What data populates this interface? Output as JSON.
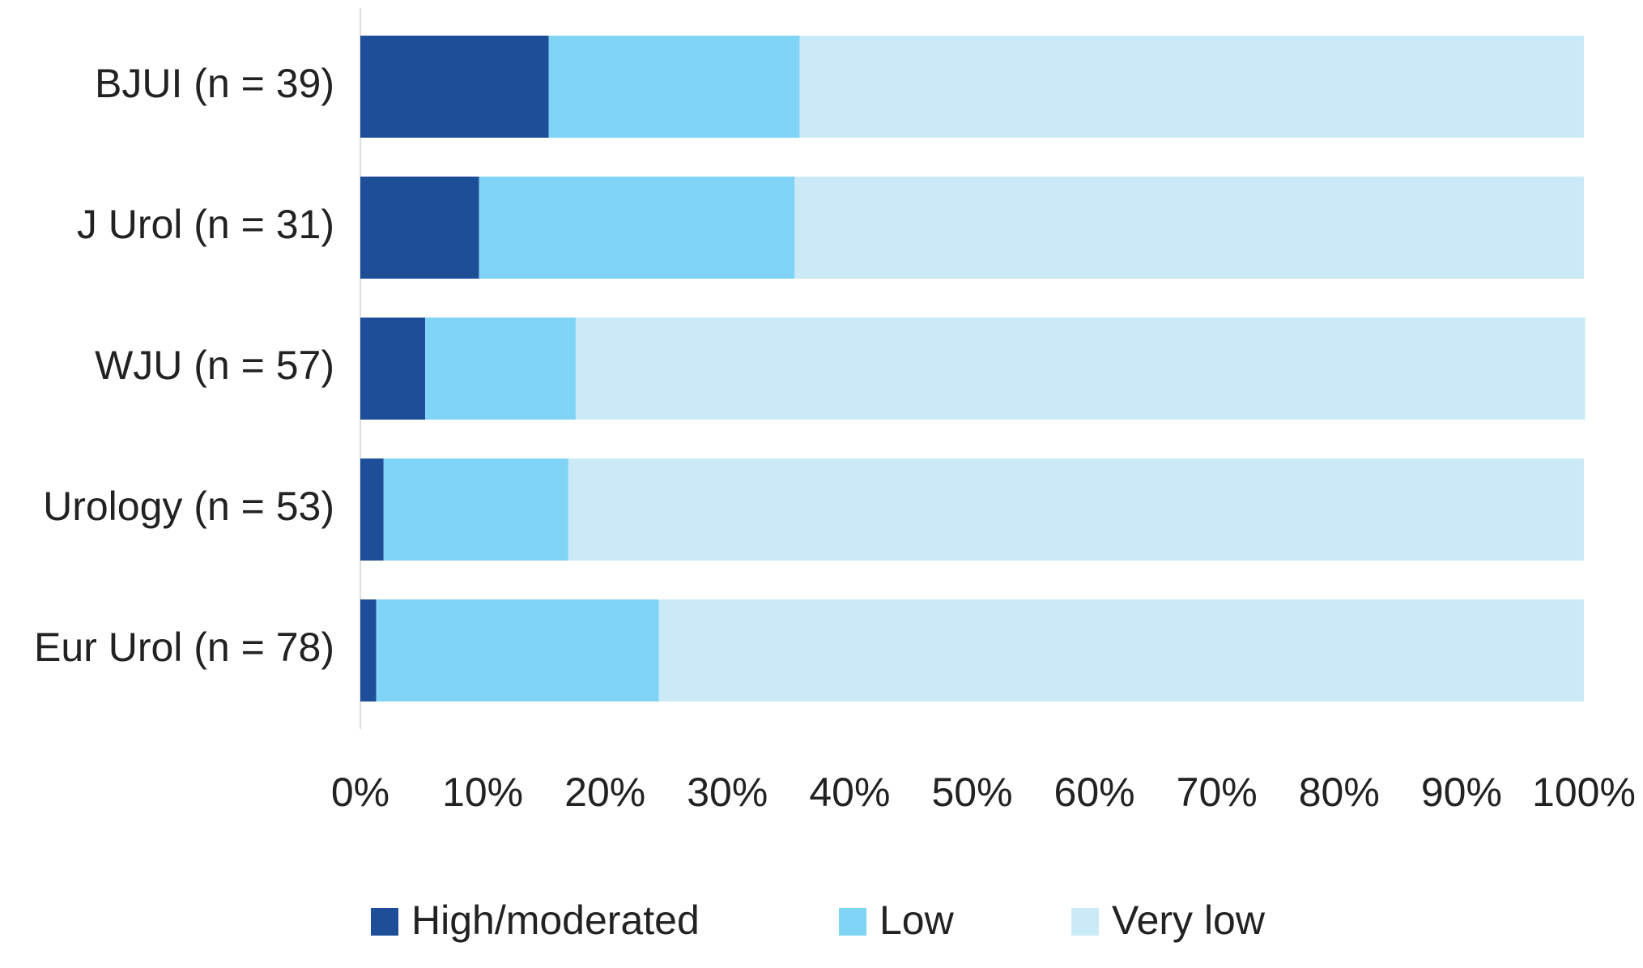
{
  "chart_data": {
    "type": "bar",
    "orientation": "horizontal",
    "stacked": true,
    "categories": [
      "BJUI (n = 39)",
      "J Urol (n = 31)",
      "WJU (n = 57)",
      "Urology (n = 53)",
      "Eur Urol (n = 78)"
    ],
    "series": [
      {
        "name": "High/moderated",
        "color": "#1f4e99",
        "values": [
          15.4,
          9.7,
          5.3,
          1.9,
          1.3
        ]
      },
      {
        "name": "Low",
        "color": "#7fd4f5",
        "values": [
          20.5,
          25.8,
          12.3,
          15.1,
          23.1
        ]
      },
      {
        "name": "Very low",
        "color": "#cbeaf7",
        "values": [
          64.1,
          64.5,
          82.5,
          83.0,
          75.6
        ]
      }
    ],
    "xlim": [
      0,
      100
    ],
    "xticks": [
      {
        "value": 0,
        "label": "0%"
      },
      {
        "value": 10,
        "label": "10%"
      },
      {
        "value": 20,
        "label": "20%"
      },
      {
        "value": 30,
        "label": "30%"
      },
      {
        "value": 40,
        "label": "40%"
      },
      {
        "value": 50,
        "label": "50%"
      },
      {
        "value": 60,
        "label": "60%"
      },
      {
        "value": 70,
        "label": "70%"
      },
      {
        "value": 80,
        "label": "80%"
      },
      {
        "value": 90,
        "label": "90%"
      },
      {
        "value": 100,
        "label": "100%"
      }
    ],
    "grid": false,
    "legend": "bottom"
  }
}
